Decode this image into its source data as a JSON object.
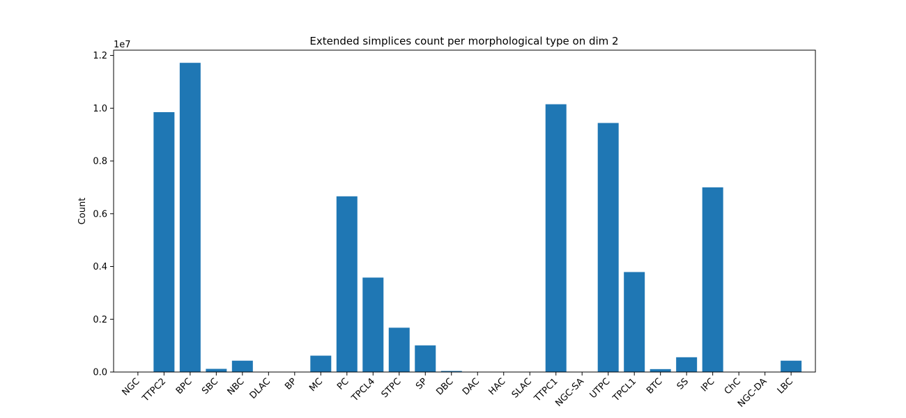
{
  "chart_data": {
    "type": "bar",
    "title": "Extended simplices count per morphological type on dim 2",
    "xlabel": "",
    "ylabel": "Count",
    "scale_label": "1e7",
    "ylim": [
      0,
      1.22
    ],
    "yticks": [
      "0.0",
      "0.2",
      "0.4",
      "0.6",
      "0.8",
      "1.0",
      "1.2"
    ],
    "grid": false,
    "bar_color": "#1f77b4",
    "categories": [
      "NGC",
      "TTPC2",
      "BPC",
      "SBC",
      "NBC",
      "DLAC",
      "BP",
      "MC",
      "PC",
      "TPCL4",
      "STPC",
      "SP",
      "DBC",
      "DAC",
      "HAC",
      "SLAC",
      "TTPC1",
      "NGC-SA",
      "UTPC",
      "TPCL1",
      "BTC",
      "SS",
      "IPC",
      "ChC",
      "NGC-DA",
      "LBC"
    ],
    "values": [
      0.0,
      0.985,
      1.172,
      0.012,
      0.043,
      0.001,
      0.001,
      0.062,
      0.666,
      0.358,
      0.168,
      0.101,
      0.004,
      0.001,
      0.001,
      0.001,
      1.015,
      0.001,
      0.944,
      0.379,
      0.011,
      0.056,
      0.7,
      0.001,
      0.001,
      0.043
    ]
  }
}
